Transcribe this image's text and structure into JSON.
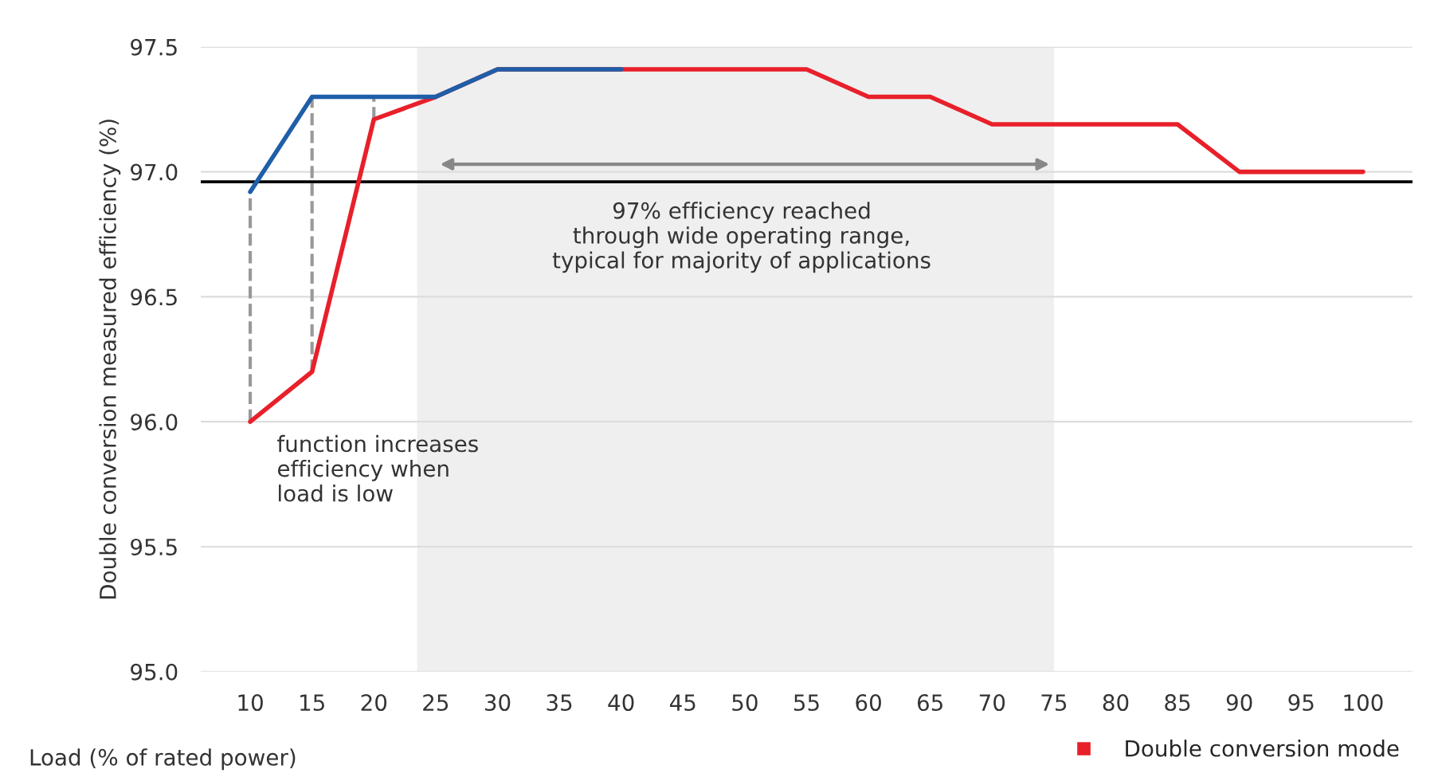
{
  "chart_data": {
    "type": "line",
    "ylabel": "Double conversion measured efficiency (%)",
    "xlabel": "Load (% of rated power)",
    "xlim": [
      6,
      104
    ],
    "xticks": [
      10,
      15,
      20,
      25,
      30,
      35,
      40,
      45,
      50,
      55,
      60,
      65,
      70,
      75,
      80,
      85,
      90,
      95,
      100
    ],
    "ylim": [
      95.0,
      97.5
    ],
    "yticks": [
      {
        "value": 95.0,
        "label": "95.0"
      },
      {
        "value": 95.5,
        "label": "95.5"
      },
      {
        "value": 96.0,
        "label": "96.0"
      },
      {
        "value": 96.5,
        "label": "96.5"
      },
      {
        "value": 97.0,
        "label": "97.0"
      },
      {
        "value": 97.5,
        "label": "97.5"
      }
    ],
    "grid": "y",
    "legend": "bottom right",
    "marker": "none",
    "line_style": "solid",
    "series": [
      {
        "color": "#e8202a",
        "x": [
          10,
          15,
          20,
          25,
          30,
          35,
          40,
          45,
          50,
          55,
          60,
          65,
          70,
          75,
          80,
          85,
          90,
          95,
          100
        ],
        "values": [
          96.0,
          96.2,
          97.21,
          97.3,
          97.41,
          97.41,
          97.41,
          97.41,
          97.41,
          97.41,
          97.3,
          97.3,
          97.19,
          97.19,
          97.19,
          97.19,
          97.0,
          97.0,
          97.0
        ],
        "name": "Double conversion mode"
      },
      {
        "color": "#1f5ea8",
        "x": [
          10,
          15,
          20,
          25,
          30,
          35,
          40
        ],
        "values": [
          96.92,
          97.3,
          97.3,
          97.3,
          97.41,
          97.41,
          97.41
        ]
      }
    ],
    "ref_lines": [
      {
        "axis": "y",
        "value": 96.96,
        "color": "#000000"
      }
    ],
    "bands": [
      {
        "axis": "x",
        "from": 23.5,
        "to": 75,
        "color": "#efeff0"
      }
    ],
    "annotations": [
      "97% efficiency reached\nthrough wide operating range,\ntypical for majority of applications",
      {
        "text": "function increases\nefficiency when\nload is low",
        "x": 10,
        "y": 96.0
      }
    ]
  }
}
